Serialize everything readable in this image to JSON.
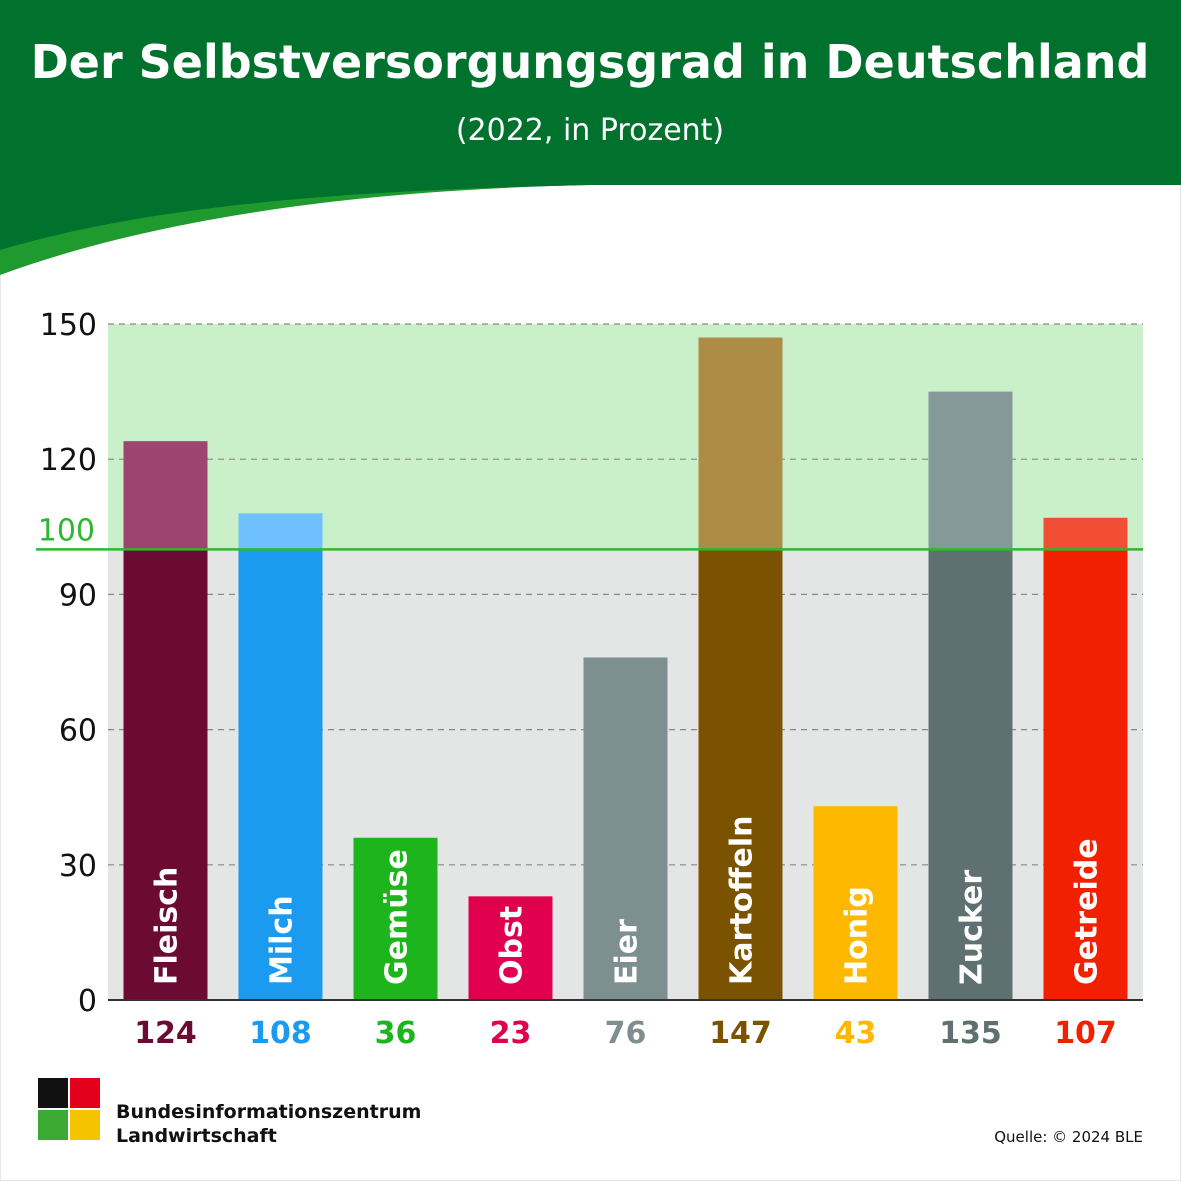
{
  "chart_data": {
    "type": "bar",
    "title": "Der Selbstversorgungsgrad in Deutschland",
    "subtitle": "(2022, in Prozent)",
    "categories": [
      "Fleisch",
      "Milch",
      "Gemüse",
      "Obst",
      "Eier",
      "Kartoffeln",
      "Honig",
      "Zucker",
      "Getreide"
    ],
    "values": [
      124,
      108,
      36,
      23,
      76,
      147,
      43,
      135,
      107
    ],
    "colors": [
      "#6b0a33",
      "#1a9bf0",
      "#1cb51c",
      "#e0004d",
      "#7e8f8f",
      "#7a5200",
      "#ffb800",
      "#5e7070",
      "#f02000"
    ],
    "colors_above_reference": [
      "#9e4470",
      "#6ec0ff",
      "#1cb51c",
      "#e0004d",
      "#7e8f8f",
      "#ad8c45",
      "#ffb800",
      "#85999a",
      "#f24d35"
    ],
    "ylim": [
      0,
      150
    ],
    "yticks": [
      0,
      30,
      60,
      90,
      120,
      150
    ],
    "grid": true,
    "reference_line": {
      "value": 100,
      "color": "#2db82d"
    },
    "source": "Quelle: © 2024 BLE",
    "publisher": [
      "Bundesinformationszentrum",
      "Landwirtschaft"
    ]
  }
}
